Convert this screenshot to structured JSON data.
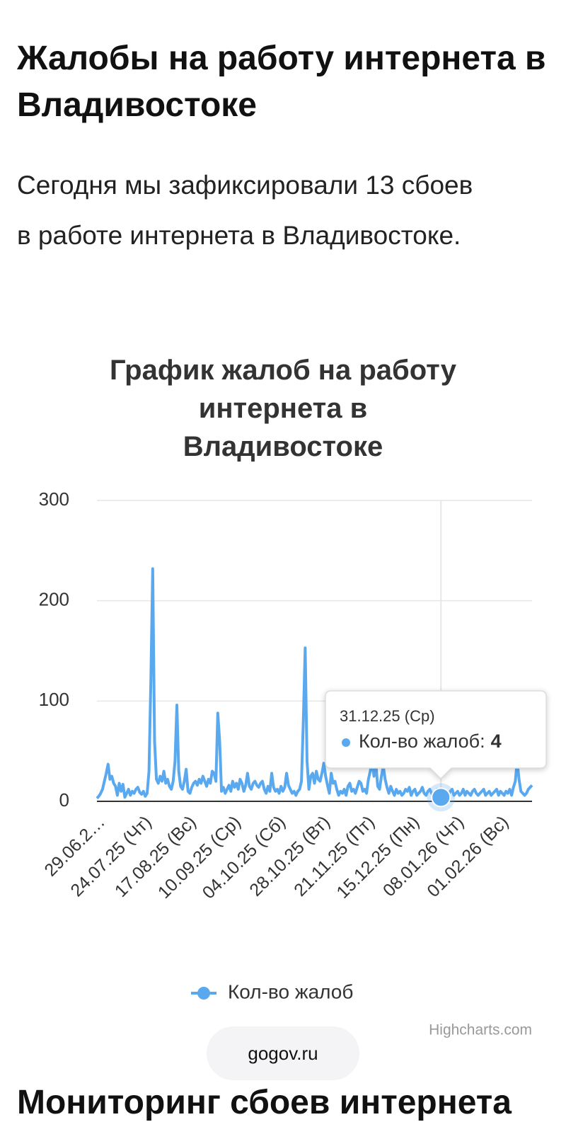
{
  "header": {
    "title": "Жалобы на работу интернета в Владивостоке"
  },
  "intro": "Сегодня мы зафиксировали 13 сбоев в работе интернета в Владивостоке.",
  "chart_data": {
    "type": "line",
    "title": "График жалоб на работу интернета в Владивостоке",
    "categories": [
      "29.06.2…",
      null,
      null,
      null,
      null,
      null,
      null,
      null,
      null,
      null,
      null,
      null,
      null,
      null,
      null,
      null,
      null,
      null,
      null,
      null,
      null,
      null,
      null,
      null,
      null,
      "24.07.25 (Чт)",
      null,
      null,
      null,
      null,
      null,
      null,
      null,
      null,
      null,
      null,
      null,
      null,
      null,
      null,
      null,
      null,
      null,
      null,
      null,
      null,
      null,
      null,
      null,
      "17.08.25 (Вс)",
      null,
      null,
      null,
      null,
      null,
      null,
      null,
      null,
      null,
      null,
      null,
      null,
      null,
      null,
      null,
      null,
      null,
      null,
      null,
      null,
      null,
      null,
      null,
      "10.09.25 (Ср)",
      null,
      null,
      null,
      null,
      null,
      null,
      null,
      null,
      null,
      null,
      null,
      null,
      null,
      null,
      null,
      null,
      null,
      null,
      null,
      null,
      null,
      null,
      null,
      "04.10.25 (Сб)",
      null,
      null,
      null,
      null,
      null,
      null,
      null,
      null,
      null,
      null,
      null,
      null,
      null,
      null,
      null,
      null,
      null,
      null,
      null,
      null,
      null,
      null,
      null,
      "28.10.25 (Вт)",
      null,
      null,
      null,
      null,
      null,
      null,
      null,
      null,
      null,
      null,
      null,
      null,
      null,
      null,
      null,
      null,
      null,
      null,
      null,
      null,
      null,
      null,
      null,
      "21.11.25 (Пт)",
      null,
      null,
      null,
      null,
      null,
      null,
      null,
      null,
      null,
      null,
      null,
      null,
      null,
      null,
      null,
      null,
      null,
      null,
      null,
      null,
      null,
      null,
      null,
      "15.12.25 (Пн)",
      null,
      null,
      null,
      null,
      null,
      null,
      null,
      null,
      null,
      null,
      null,
      null,
      null,
      null,
      null,
      null,
      null,
      null,
      null,
      null,
      null,
      null,
      null,
      "08.01.26 (Чт)",
      null,
      null,
      null,
      null,
      null,
      null,
      null,
      null,
      null,
      null,
      null,
      null,
      null,
      null,
      null,
      null,
      null,
      null,
      null,
      null,
      null,
      null,
      null,
      "01.02.26 (Вс)",
      null,
      null,
      null,
      null,
      null,
      null,
      null,
      null,
      null,
      null,
      null,
      null,
      null,
      null,
      null,
      null,
      null
    ],
    "series": [
      {
        "name": "Кол-во жалоб",
        "color": "#5aa9ef",
        "values": [
          3,
          5,
          8,
          12,
          20,
          28,
          37,
          22,
          25,
          18,
          15,
          6,
          18,
          10,
          17,
          4,
          8,
          12,
          6,
          10,
          8,
          12,
          14,
          9,
          7,
          10,
          5,
          8,
          30,
          120,
          232,
          60,
          22,
          18,
          25,
          20,
          30,
          18,
          22,
          15,
          12,
          20,
          40,
          96,
          30,
          15,
          12,
          20,
          32,
          10,
          8,
          14,
          18,
          20,
          16,
          22,
          18,
          25,
          20,
          15,
          22,
          18,
          30,
          28,
          20,
          88,
          60,
          10,
          14,
          8,
          12,
          16,
          10,
          20,
          14,
          18,
          12,
          22,
          18,
          10,
          16,
          28,
          15,
          12,
          18,
          20,
          16,
          14,
          18,
          20,
          12,
          8,
          15,
          10,
          28,
          14,
          10,
          12,
          8,
          15,
          10,
          14,
          28,
          16,
          12,
          8,
          10,
          6,
          10,
          12,
          20,
          80,
          153,
          40,
          12,
          25,
          28,
          18,
          30,
          22,
          20,
          28,
          38,
          25,
          16,
          8,
          28,
          18,
          20,
          12,
          6,
          10,
          8,
          12,
          6,
          15,
          18,
          10,
          12,
          8,
          14,
          20,
          18,
          10,
          12,
          8,
          22,
          30,
          40,
          25,
          38,
          15,
          12,
          25,
          35,
          22,
          14,
          8,
          15,
          10,
          6,
          12,
          8,
          10,
          6,
          8,
          12,
          10,
          14,
          6,
          10,
          12,
          6,
          8,
          10,
          14,
          8,
          6,
          10,
          12,
          8,
          6,
          10,
          12,
          8,
          4,
          6,
          10,
          8,
          6,
          10,
          12,
          6,
          8,
          10,
          6,
          8,
          12,
          6,
          10,
          8,
          6,
          10,
          12,
          8,
          6,
          8,
          10,
          12,
          6,
          8,
          10,
          6,
          8,
          10,
          12,
          6,
          10,
          8,
          6,
          10,
          8,
          12,
          6,
          14,
          20,
          40,
          22,
          10,
          8,
          6,
          8,
          12,
          14,
          16
        ]
      }
    ],
    "ylim": [
      0,
      300
    ],
    "yticks": [
      0,
      100,
      200,
      300
    ],
    "grid": true,
    "tooltip": {
      "date": "31.12.25 (Ср)",
      "label": "Кол-во жалоб:"
    },
    "credits": "Highcharts.com"
  },
  "button": "gogov.ru",
  "next_heading": "Мониторинг сбоев интернета"
}
